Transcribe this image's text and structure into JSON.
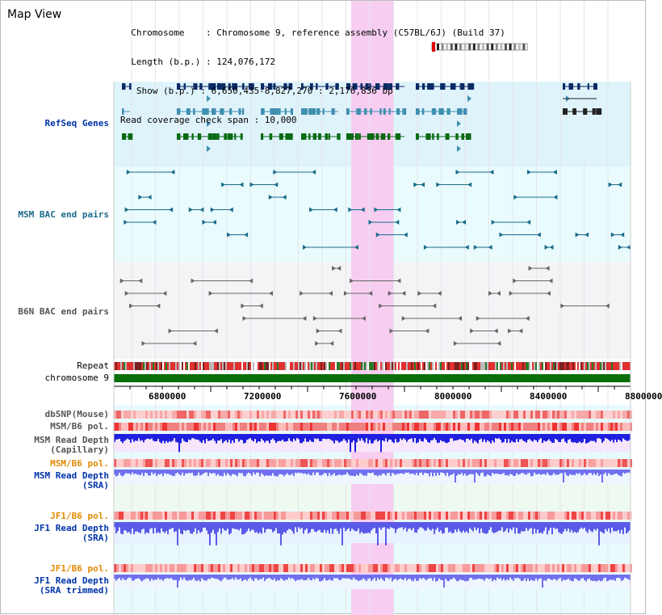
{
  "header": {
    "title": "Map View",
    "info_lines": [
      "  Chromosome    : Chromosome 9, reference assembly (C57BL/6J) (Build 37)",
      "  Length (b.p.) : 124,076,172",
      "   Show (b.p.) : 6,650,435-8,827,270 : 2,176,836 bp",
      "Read coverage check span : 10,000"
    ]
  },
  "tracks": {
    "refseq": "RefSeq Genes",
    "msm_bac": "MSM BAC end pairs",
    "b6n_bac": "B6N BAC end pairs",
    "repeat": "Repeat",
    "chromosome": "chromosome 9",
    "dbsnp": "dbSNP(Mouse)",
    "msm_b6_pol": "MSM/B6 pol.",
    "msm_depth_cap": "MSM Read Depth\n(Capillary)",
    "msm_b6_pol2": "MSM/B6 pol.",
    "msm_depth_sra": "MSM Read Depth\n(SRA)",
    "jf1_b6_pol": "JF1/B6 pol.",
    "jf1_depth_sra": "JF1 Read Depth\n(SRA)",
    "jf1_b6_pol2": "JF1/B6 pol.",
    "jf1_depth_trim": "JF1 Read Depth\n(SRA trimmed)"
  },
  "axis": {
    "ticks": [
      "6800000",
      "7200000",
      "7600000",
      "8000000",
      "8400000",
      "8800000"
    ]
  },
  "colors": {
    "refseq_dark": "#0a2a66",
    "refseq_mid": "#3f8fb0",
    "refseq_green": "#0a6a14",
    "highlight": "#f7cdf2",
    "chromosome": "#0a6e0a"
  }
}
